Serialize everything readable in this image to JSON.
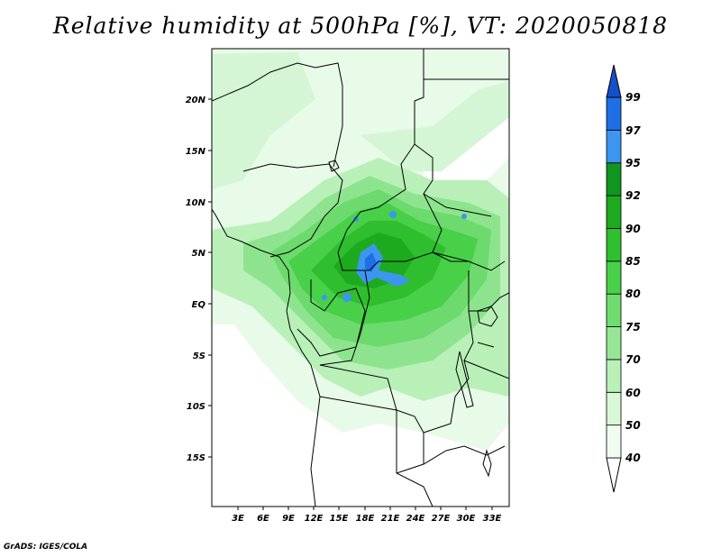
{
  "title": "Relative humidity at 500hPa [%], VT: 2020050818",
  "credit": "GrADS: IGES/COLA",
  "map": {
    "lat_labels": [
      "20N",
      "15N",
      "10N",
      "5N",
      "EQ",
      "5S",
      "10S",
      "15S"
    ],
    "lon_labels": [
      "3E",
      "6E",
      "9E",
      "12E",
      "15E",
      "18E",
      "21E",
      "24E",
      "27E",
      "30E",
      "33E"
    ]
  },
  "colorbar": {
    "levels": [
      "40",
      "50",
      "60",
      "70",
      "75",
      "80",
      "85",
      "90",
      "92",
      "95",
      "97",
      "99"
    ],
    "colors": [
      "#f0fcf0",
      "#d8f8d8",
      "#b8f0b8",
      "#96e696",
      "#70dc70",
      "#48d048",
      "#2ec02e",
      "#1eaa1e",
      "#10961e",
      "#3c96f0",
      "#1e6ee6",
      "#1450c8"
    ]
  }
}
